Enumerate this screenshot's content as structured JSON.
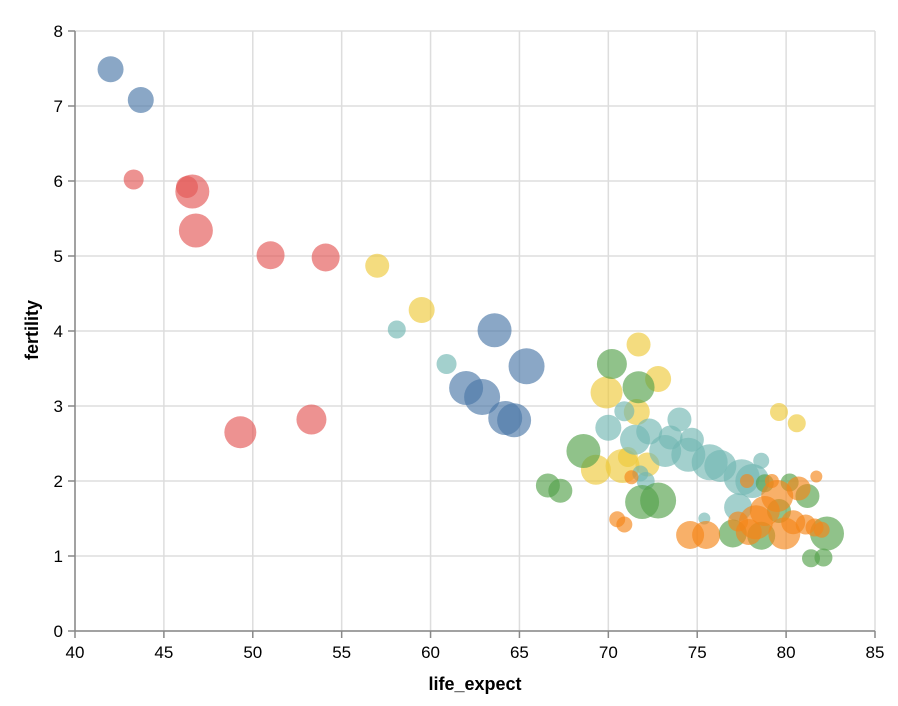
{
  "chart_data": {
    "type": "scatter",
    "title": "",
    "xlabel": "life_expect",
    "ylabel": "fertility",
    "xlim": [
      40,
      85
    ],
    "ylim": [
      0,
      8
    ],
    "x_ticks": [
      "40",
      "45",
      "50",
      "55",
      "60",
      "65",
      "70",
      "75",
      "80",
      "85"
    ],
    "y_ticks": [
      "0",
      "1",
      "2",
      "3",
      "4",
      "5",
      "6",
      "7",
      "8"
    ],
    "grid": true,
    "colors": {
      "blue": "#4c78a8",
      "red": "#e45756",
      "yellow": "#eeca3b",
      "teal": "#72b7b2",
      "green": "#54a24b",
      "orange": "#f58518"
    },
    "series": [
      {
        "color": "#4c78a8",
        "points": [
          {
            "x": 42.0,
            "y": 7.49,
            "size": 13
          },
          {
            "x": 43.7,
            "y": 7.08,
            "size": 13
          },
          {
            "x": 63.6,
            "y": 4.01,
            "size": 17
          },
          {
            "x": 65.4,
            "y": 3.53,
            "size": 18
          },
          {
            "x": 62.0,
            "y": 3.24,
            "size": 17
          },
          {
            "x": 62.9,
            "y": 3.12,
            "size": 18
          },
          {
            "x": 64.2,
            "y": 2.84,
            "size": 17
          },
          {
            "x": 64.7,
            "y": 2.81,
            "size": 17
          }
        ]
      },
      {
        "color": "#e45756",
        "points": [
          {
            "x": 43.3,
            "y": 6.02,
            "size": 10
          },
          {
            "x": 46.3,
            "y": 5.92,
            "size": 11
          },
          {
            "x": 46.6,
            "y": 5.86,
            "size": 17
          },
          {
            "x": 46.8,
            "y": 5.34,
            "size": 17
          },
          {
            "x": 51.0,
            "y": 5.01,
            "size": 14
          },
          {
            "x": 54.1,
            "y": 4.98,
            "size": 14
          },
          {
            "x": 49.3,
            "y": 2.65,
            "size": 16
          },
          {
            "x": 53.3,
            "y": 2.82,
            "size": 15
          }
        ]
      },
      {
        "color": "#eeca3b",
        "points": [
          {
            "x": 57.0,
            "y": 4.87,
            "size": 12
          },
          {
            "x": 59.5,
            "y": 4.28,
            "size": 13
          },
          {
            "x": 71.7,
            "y": 3.82,
            "size": 12
          },
          {
            "x": 72.8,
            "y": 3.36,
            "size": 13
          },
          {
            "x": 69.9,
            "y": 3.18,
            "size": 16
          },
          {
            "x": 71.6,
            "y": 2.92,
            "size": 13
          },
          {
            "x": 69.3,
            "y": 2.15,
            "size": 15
          },
          {
            "x": 70.8,
            "y": 2.2,
            "size": 17
          },
          {
            "x": 71.1,
            "y": 2.32,
            "size": 10
          },
          {
            "x": 72.2,
            "y": 2.22,
            "size": 12
          },
          {
            "x": 79.6,
            "y": 2.92,
            "size": 9
          },
          {
            "x": 80.6,
            "y": 2.77,
            "size": 9
          }
        ]
      },
      {
        "color": "#72b7b2",
        "points": [
          {
            "x": 58.1,
            "y": 4.02,
            "size": 9
          },
          {
            "x": 60.9,
            "y": 3.56,
            "size": 10
          },
          {
            "x": 70.0,
            "y": 2.71,
            "size": 13
          },
          {
            "x": 70.9,
            "y": 2.93,
            "size": 10
          },
          {
            "x": 71.5,
            "y": 2.55,
            "size": 15
          },
          {
            "x": 72.3,
            "y": 2.66,
            "size": 13
          },
          {
            "x": 73.5,
            "y": 2.58,
            "size": 12
          },
          {
            "x": 74.0,
            "y": 2.82,
            "size": 12
          },
          {
            "x": 74.7,
            "y": 2.55,
            "size": 12
          },
          {
            "x": 73.2,
            "y": 2.4,
            "size": 16
          },
          {
            "x": 74.5,
            "y": 2.35,
            "size": 17
          },
          {
            "x": 75.7,
            "y": 2.25,
            "size": 18
          },
          {
            "x": 76.3,
            "y": 2.2,
            "size": 16
          },
          {
            "x": 77.5,
            "y": 2.05,
            "size": 18
          },
          {
            "x": 78.1,
            "y": 2.0,
            "size": 17
          },
          {
            "x": 77.3,
            "y": 1.65,
            "size": 14
          },
          {
            "x": 78.6,
            "y": 2.27,
            "size": 8
          },
          {
            "x": 72.1,
            "y": 2.0,
            "size": 9
          },
          {
            "x": 71.8,
            "y": 2.1,
            "size": 8
          },
          {
            "x": 75.4,
            "y": 1.5,
            "size": 6
          }
        ]
      },
      {
        "color": "#54a24b",
        "points": [
          {
            "x": 70.2,
            "y": 3.56,
            "size": 15
          },
          {
            "x": 71.7,
            "y": 3.25,
            "size": 16
          },
          {
            "x": 68.6,
            "y": 2.4,
            "size": 17
          },
          {
            "x": 66.6,
            "y": 1.94,
            "size": 12
          },
          {
            "x": 67.3,
            "y": 1.87,
            "size": 12
          },
          {
            "x": 71.9,
            "y": 1.72,
            "size": 17
          },
          {
            "x": 72.8,
            "y": 1.74,
            "size": 18
          },
          {
            "x": 77.0,
            "y": 1.3,
            "size": 14
          },
          {
            "x": 78.6,
            "y": 1.27,
            "size": 14
          },
          {
            "x": 79.6,
            "y": 1.6,
            "size": 12
          },
          {
            "x": 81.2,
            "y": 1.8,
            "size": 12
          },
          {
            "x": 82.3,
            "y": 1.3,
            "size": 17
          },
          {
            "x": 81.4,
            "y": 0.97,
            "size": 9
          },
          {
            "x": 82.1,
            "y": 0.98,
            "size": 9
          },
          {
            "x": 80.2,
            "y": 1.98,
            "size": 9
          },
          {
            "x": 78.8,
            "y": 1.97,
            "size": 9
          }
        ]
      },
      {
        "color": "#f58518",
        "points": [
          {
            "x": 70.5,
            "y": 1.49,
            "size": 8
          },
          {
            "x": 70.9,
            "y": 1.42,
            "size": 8
          },
          {
            "x": 74.6,
            "y": 1.28,
            "size": 14
          },
          {
            "x": 75.5,
            "y": 1.28,
            "size": 14
          },
          {
            "x": 77.3,
            "y": 1.46,
            "size": 10
          },
          {
            "x": 77.9,
            "y": 1.32,
            "size": 13
          },
          {
            "x": 78.3,
            "y": 1.45,
            "size": 17
          },
          {
            "x": 78.8,
            "y": 1.6,
            "size": 15
          },
          {
            "x": 79.5,
            "y": 1.8,
            "size": 16
          },
          {
            "x": 79.9,
            "y": 1.3,
            "size": 16
          },
          {
            "x": 80.4,
            "y": 1.45,
            "size": 12
          },
          {
            "x": 80.7,
            "y": 1.9,
            "size": 12
          },
          {
            "x": 81.1,
            "y": 1.42,
            "size": 10
          },
          {
            "x": 81.6,
            "y": 1.38,
            "size": 9
          },
          {
            "x": 82.0,
            "y": 1.35,
            "size": 8
          },
          {
            "x": 77.8,
            "y": 2.0,
            "size": 7
          },
          {
            "x": 79.2,
            "y": 2.0,
            "size": 7
          },
          {
            "x": 81.7,
            "y": 2.06,
            "size": 6
          },
          {
            "x": 71.3,
            "y": 2.05,
            "size": 7
          }
        ]
      }
    ]
  }
}
